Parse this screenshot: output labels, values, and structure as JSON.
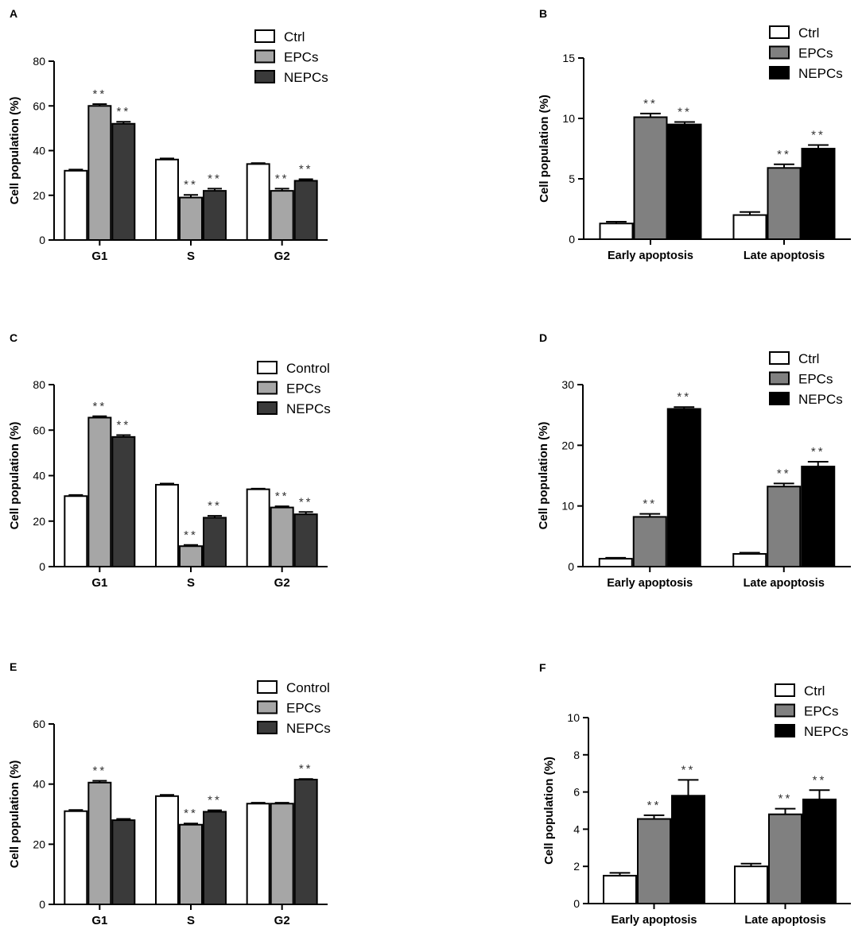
{
  "colors": {
    "ctrl": "#ffffff",
    "epcs_light": "#a6a6a6",
    "nepcs_dark": "#3a3a3a",
    "epcs_mid": "#808080",
    "nepcs_black": "#000000",
    "axis": "#000000"
  },
  "chart_data": [
    {
      "panel": "A",
      "type": "bar",
      "ylabel": "Cell population (%)",
      "ylim": [
        0,
        80
      ],
      "yticks": [
        0,
        20,
        40,
        60,
        80
      ],
      "categories": [
        "G1",
        "S",
        "G2"
      ],
      "series": [
        {
          "name": "Ctrl",
          "color": "#ffffff",
          "values": [
            31,
            36,
            34
          ],
          "errors": [
            0.5,
            0.5,
            0.4
          ],
          "marks": [
            "",
            "",
            ""
          ]
        },
        {
          "name": "EPCs",
          "color": "#a6a6a6",
          "values": [
            60,
            19,
            22
          ],
          "errors": [
            0.8,
            1.2,
            1.0
          ],
          "marks": [
            "**",
            "**",
            "**"
          ]
        },
        {
          "name": "NEPCs",
          "color": "#3a3a3a",
          "values": [
            52,
            22,
            26.5
          ],
          "errors": [
            0.9,
            1.0,
            0.7
          ],
          "marks": [
            "**",
            "**",
            "**"
          ]
        }
      ]
    },
    {
      "panel": "B",
      "type": "bar",
      "ylabel": "Cell population (%)",
      "ylim": [
        0,
        15
      ],
      "yticks": [
        0,
        5,
        10,
        15
      ],
      "categories": [
        "Early apoptosis",
        "Late apoptosis"
      ],
      "series": [
        {
          "name": "Ctrl",
          "color": "#ffffff",
          "values": [
            1.3,
            2.0
          ],
          "errors": [
            0.15,
            0.25
          ],
          "marks": [
            "",
            ""
          ]
        },
        {
          "name": "EPCs",
          "color": "#808080",
          "values": [
            10.1,
            5.9
          ],
          "errors": [
            0.3,
            0.3
          ],
          "marks": [
            "**",
            "**"
          ]
        },
        {
          "name": "NEPCs",
          "color": "#000000",
          "values": [
            9.5,
            7.5
          ],
          "errors": [
            0.2,
            0.3
          ],
          "marks": [
            "**",
            "**"
          ]
        }
      ]
    },
    {
      "panel": "C",
      "type": "bar",
      "ylabel": "Cell population (%)",
      "ylim": [
        0,
        80
      ],
      "yticks": [
        0,
        20,
        40,
        60,
        80
      ],
      "categories": [
        "G1",
        "S",
        "G2"
      ],
      "series": [
        {
          "name": "Control",
          "color": "#ffffff",
          "values": [
            31,
            36,
            34
          ],
          "errors": [
            0.5,
            0.5,
            0.3
          ],
          "marks": [
            "",
            "",
            ""
          ]
        },
        {
          "name": "EPCs",
          "color": "#a6a6a6",
          "values": [
            65.5,
            9,
            26
          ],
          "errors": [
            0.6,
            0.5,
            0.5
          ],
          "marks": [
            "**",
            "**",
            "**"
          ]
        },
        {
          "name": "NEPCs",
          "color": "#3a3a3a",
          "values": [
            57,
            21.5,
            23
          ],
          "errors": [
            0.8,
            0.8,
            1.0
          ],
          "marks": [
            "**",
            "**",
            "**"
          ]
        }
      ]
    },
    {
      "panel": "D",
      "type": "bar",
      "ylabel": "Cell population (%)",
      "ylim": [
        0,
        30
      ],
      "yticks": [
        0,
        10,
        20,
        30
      ],
      "categories": [
        "Early apoptosis",
        "Late apoptosis"
      ],
      "series": [
        {
          "name": "Ctrl",
          "color": "#ffffff",
          "values": [
            1.3,
            2.1
          ],
          "errors": [
            0.15,
            0.2
          ],
          "marks": [
            "",
            ""
          ]
        },
        {
          "name": "EPCs",
          "color": "#808080",
          "values": [
            8.2,
            13.2
          ],
          "errors": [
            0.5,
            0.5
          ],
          "marks": [
            "**",
            "**"
          ]
        },
        {
          "name": "NEPCs",
          "color": "#000000",
          "values": [
            26,
            16.5
          ],
          "errors": [
            0.3,
            0.8
          ],
          "marks": [
            "**",
            "**"
          ]
        }
      ]
    },
    {
      "panel": "E",
      "type": "bar",
      "ylabel": "Cell population (%)",
      "ylim": [
        0,
        60
      ],
      "yticks": [
        0,
        20,
        40,
        60
      ],
      "categories": [
        "G1",
        "S",
        "G2"
      ],
      "series": [
        {
          "name": "Control",
          "color": "#ffffff",
          "values": [
            31,
            36,
            33.5
          ],
          "errors": [
            0.4,
            0.4,
            0.3
          ],
          "marks": [
            "",
            "",
            ""
          ]
        },
        {
          "name": "EPCs",
          "color": "#a6a6a6",
          "values": [
            40.5,
            26.5,
            33.5
          ],
          "errors": [
            0.6,
            0.4,
            0.3
          ],
          "marks": [
            "**",
            "**",
            ""
          ]
        },
        {
          "name": "NEPCs",
          "color": "#3a3a3a",
          "values": [
            28,
            30.8,
            41.5
          ],
          "errors": [
            0.4,
            0.5,
            0.2
          ],
          "marks": [
            "",
            "**",
            "**"
          ]
        }
      ]
    },
    {
      "panel": "F",
      "type": "bar",
      "ylabel": "Cell population (%)",
      "ylim": [
        0,
        10
      ],
      "yticks": [
        0,
        2,
        4,
        6,
        8,
        10
      ],
      "categories": [
        "Early apoptosis",
        "Late apoptosis"
      ],
      "series": [
        {
          "name": "Ctrl",
          "color": "#ffffff",
          "values": [
            1.5,
            2.0
          ],
          "errors": [
            0.15,
            0.15
          ],
          "marks": [
            "",
            ""
          ]
        },
        {
          "name": "EPCs",
          "color": "#808080",
          "values": [
            4.55,
            4.8
          ],
          "errors": [
            0.2,
            0.3
          ],
          "marks": [
            "**",
            "**"
          ]
        },
        {
          "name": "NEPCs",
          "color": "#000000",
          "values": [
            5.8,
            5.6
          ],
          "errors": [
            0.85,
            0.5
          ],
          "marks": [
            "**",
            "**"
          ]
        }
      ]
    }
  ]
}
